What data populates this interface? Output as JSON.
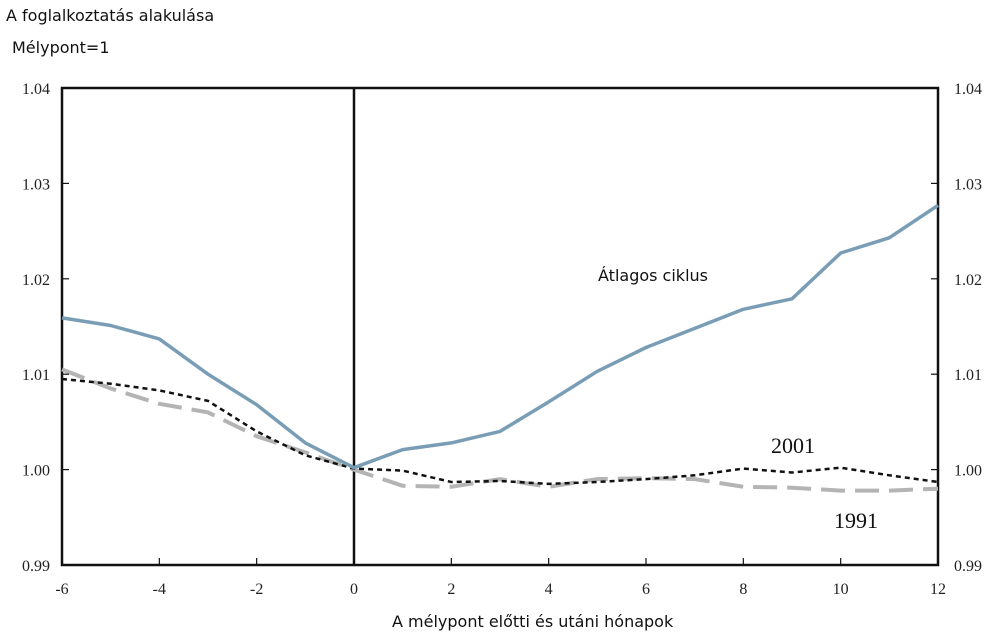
{
  "chart_data": {
    "type": "line",
    "title": "A foglalkoztatás alakulása",
    "subtitle": "Mélypont=1",
    "xlabel": "A mélypont előtti és utáni hónapok",
    "ylabel": "",
    "xlim": [
      -6,
      12
    ],
    "ylim": [
      0.99,
      1.04
    ],
    "x_ticks": [
      "-6",
      "-4",
      "-2",
      "0",
      "2",
      "4",
      "6",
      "8",
      "10",
      "12"
    ],
    "y_ticks": [
      "0.99",
      "1.00",
      "1.01",
      "1.02",
      "1.03",
      "1.04"
    ],
    "x": [
      -6,
      -5,
      -4,
      -3,
      -2,
      -1,
      0,
      1,
      2,
      3,
      4,
      5,
      6,
      7,
      8,
      9,
      10,
      11,
      12
    ],
    "series": [
      {
        "name": "Átlagos ciklus",
        "color": "#7a9db6",
        "style": "solid",
        "values": [
          1.0159,
          1.0151,
          1.0137,
          1.01,
          1.0068,
          1.0028,
          1.0002,
          1.0021,
          1.0028,
          1.004,
          1.0071,
          1.0103,
          1.0128,
          1.0148,
          1.0168,
          1.0179,
          1.0227,
          1.0243,
          1.0277
        ]
      },
      {
        "name": "2001",
        "color": "#111111",
        "style": "dotted",
        "values": [
          1.0095,
          1.009,
          1.0083,
          1.0072,
          1.004,
          1.0015,
          1.0001,
          0.9999,
          0.9987,
          0.9988,
          0.9985,
          0.9987,
          0.999,
          0.9994,
          1.0001,
          0.9997,
          1.0002,
          0.9994,
          0.9987
        ]
      },
      {
        "name": "1991",
        "color": "#b4b4b4",
        "style": "dashed",
        "values": [
          1.0105,
          1.0085,
          1.0069,
          1.006,
          1.0035,
          1.0018,
          1.0,
          0.9983,
          0.9982,
          0.999,
          0.9982,
          0.999,
          0.9991,
          0.999,
          0.9982,
          0.9981,
          0.9978,
          0.9978,
          0.998
        ]
      }
    ],
    "vertical_line_at": 0,
    "grid": false,
    "legend": "inline labels"
  }
}
